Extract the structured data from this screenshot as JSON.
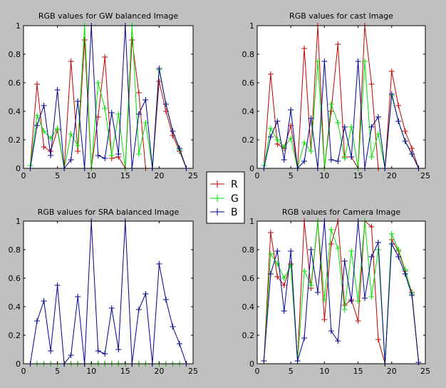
{
  "figure": {
    "background": "#c0c0c0",
    "legend": {
      "placement": "center",
      "entries": [
        {
          "label": "R",
          "color": "#c00000"
        },
        {
          "label": "G",
          "color": "#00e000"
        },
        {
          "label": "B",
          "color": "#000090"
        }
      ]
    }
  },
  "chart_data": [
    {
      "type": "line",
      "title": "RGB values for GW balanced Image",
      "xlabel": "",
      "ylabel": "",
      "xlim": [
        0,
        25
      ],
      "ylim": [
        0,
        1
      ],
      "xticks": [
        "0",
        "5",
        "10",
        "15",
        "20",
        "25"
      ],
      "yticks": [
        "0",
        "0.2",
        "0.4",
        "0.6",
        "0.8",
        "1"
      ],
      "grid": false,
      "x": [
        1,
        2,
        3,
        4,
        5,
        6,
        7,
        8,
        9,
        10,
        11,
        12,
        13,
        14,
        15,
        16,
        17,
        18,
        19,
        20,
        21,
        22,
        23,
        24
      ],
      "series": [
        {
          "name": "R",
          "color": "#c00000",
          "values": [
            0.02,
            0.59,
            0.15,
            0.12,
            0.27,
            0.0,
            0.75,
            0.12,
            0.9,
            0.0,
            0.36,
            0.78,
            0.07,
            0.08,
            0.0,
            0.9,
            0.53,
            0.0,
            0.0,
            0.61,
            0.4,
            0.23,
            0.12,
            0.0
          ]
        },
        {
          "name": "G",
          "color": "#00e000",
          "values": [
            0.02,
            0.37,
            0.26,
            0.21,
            0.28,
            0.0,
            0.24,
            0.16,
            1.0,
            0.0,
            0.6,
            0.42,
            0.09,
            0.38,
            0.0,
            1.0,
            0.1,
            0.32,
            0.0,
            0.69,
            0.45,
            0.26,
            0.13,
            0.0
          ]
        },
        {
          "name": "B",
          "color": "#000090",
          "values": [
            0.0,
            0.3,
            0.44,
            0.09,
            0.55,
            0.0,
            0.06,
            0.47,
            0.0,
            1.0,
            0.09,
            0.07,
            0.39,
            0.1,
            1.0,
            0.0,
            0.38,
            0.48,
            0.0,
            0.7,
            0.45,
            0.26,
            0.14,
            0.0
          ]
        }
      ]
    },
    {
      "type": "line",
      "title": "RGB values for cast Image",
      "xlabel": "",
      "ylabel": "",
      "xlim": [
        0,
        25
      ],
      "ylim": [
        0,
        1
      ],
      "xticks": [
        "0",
        "5",
        "10",
        "15",
        "20",
        "25"
      ],
      "yticks": [
        "0",
        "0.2",
        "0.4",
        "0.6",
        "0.8",
        "1"
      ],
      "grid": false,
      "x": [
        1,
        2,
        3,
        4,
        5,
        6,
        7,
        8,
        9,
        10,
        11,
        12,
        13,
        14,
        15,
        16,
        17,
        18,
        19,
        20,
        21,
        22,
        23,
        24
      ],
      "series": [
        {
          "name": "R",
          "color": "#c00000",
          "values": [
            0.02,
            0.66,
            0.17,
            0.14,
            0.3,
            0.0,
            0.84,
            0.12,
            1.0,
            0.0,
            0.4,
            0.87,
            0.08,
            0.08,
            0.0,
            1.0,
            0.59,
            0.0,
            0.0,
            0.68,
            0.44,
            0.26,
            0.14,
            0.0
          ]
        },
        {
          "name": "G",
          "color": "#00e000",
          "values": [
            0.02,
            0.28,
            0.2,
            0.15,
            0.21,
            0.0,
            0.18,
            0.12,
            0.75,
            0.0,
            0.45,
            0.32,
            0.07,
            0.29,
            0.0,
            0.75,
            0.08,
            0.24,
            0.0,
            0.51,
            0.33,
            0.19,
            0.1,
            0.0
          ]
        },
        {
          "name": "B",
          "color": "#000090",
          "values": [
            0.0,
            0.22,
            0.33,
            0.06,
            0.41,
            0.0,
            0.05,
            0.35,
            0.0,
            0.75,
            0.06,
            0.05,
            0.29,
            0.08,
            0.75,
            0.0,
            0.29,
            0.36,
            0.0,
            0.52,
            0.33,
            0.19,
            0.1,
            0.0
          ]
        }
      ]
    },
    {
      "type": "line",
      "title": "RGB values for SRA balanced Image",
      "xlabel": "",
      "ylabel": "",
      "xlim": [
        0,
        25
      ],
      "ylim": [
        0,
        1
      ],
      "xticks": [
        "0",
        "5",
        "10",
        "15",
        "20",
        "25"
      ],
      "yticks": [
        "0",
        "0.2",
        "0.4",
        "0.6",
        "0.8",
        "1"
      ],
      "grid": false,
      "x": [
        1,
        2,
        3,
        4,
        5,
        6,
        7,
        8,
        9,
        10,
        11,
        12,
        13,
        14,
        15,
        16,
        17,
        18,
        19,
        20,
        21,
        22,
        23,
        24
      ],
      "series": [
        {
          "name": "R",
          "color": "#c00000",
          "values": [
            0,
            0,
            0,
            0,
            0,
            0,
            0,
            0,
            0,
            0,
            0,
            0,
            0,
            0,
            0,
            0,
            0,
            0,
            0,
            0,
            0,
            0,
            0,
            0
          ]
        },
        {
          "name": "G",
          "color": "#00e000",
          "values": [
            0,
            0,
            0,
            0,
            0,
            0,
            0,
            0,
            0,
            0,
            0,
            0,
            0,
            0,
            0,
            0,
            0,
            0,
            0,
            0,
            0,
            0,
            0,
            0
          ]
        },
        {
          "name": "B",
          "color": "#000090",
          "values": [
            0.0,
            0.3,
            0.44,
            0.09,
            0.55,
            0.0,
            0.06,
            0.47,
            0.0,
            1.0,
            0.09,
            0.07,
            0.39,
            0.1,
            1.0,
            0.0,
            0.38,
            0.49,
            0.0,
            0.7,
            0.45,
            0.26,
            0.14,
            0.0
          ]
        }
      ]
    },
    {
      "type": "line",
      "title": "RGB values for Camera Image",
      "xlabel": "",
      "ylabel": "",
      "xlim": [
        0,
        25
      ],
      "ylim": [
        0,
        1
      ],
      "xticks": [
        "0",
        "5",
        "10",
        "15",
        "20",
        "25"
      ],
      "yticks": [
        "0",
        "0.2",
        "0.4",
        "0.6",
        "0.8",
        "1"
      ],
      "grid": false,
      "x": [
        1,
        2,
        3,
        4,
        5,
        6,
        7,
        8,
        9,
        10,
        11,
        12,
        13,
        14,
        15,
        16,
        17,
        18,
        19,
        20,
        21,
        22,
        23,
        24
      ],
      "series": [
        {
          "name": "R",
          "color": "#c00000",
          "values": [
            0.02,
            0.92,
            0.61,
            0.55,
            0.7,
            0.02,
            1.0,
            0.53,
            1.0,
            0.31,
            0.84,
            1.0,
            0.41,
            0.45,
            0.3,
            1.0,
            0.96,
            0.17,
            0.0,
            0.87,
            0.79,
            0.65,
            0.5,
            0.01
          ]
        },
        {
          "name": "G",
          "color": "#00e000",
          "values": [
            0.02,
            0.77,
            0.7,
            0.6,
            0.69,
            0.02,
            0.65,
            0.55,
            1.0,
            0.45,
            0.94,
            0.81,
            0.38,
            0.79,
            0.44,
            1.0,
            0.47,
            0.8,
            0.0,
            0.91,
            0.8,
            0.66,
            0.49,
            0.01
          ]
        },
        {
          "name": "B",
          "color": "#000090",
          "values": [
            0.02,
            0.63,
            0.79,
            0.37,
            0.79,
            0.02,
            0.18,
            0.8,
            0.5,
            1.0,
            0.23,
            0.16,
            0.72,
            0.44,
            1.0,
            0.46,
            0.75,
            0.85,
            0.0,
            0.84,
            0.75,
            0.63,
            0.48,
            0.01
          ]
        }
      ]
    }
  ]
}
